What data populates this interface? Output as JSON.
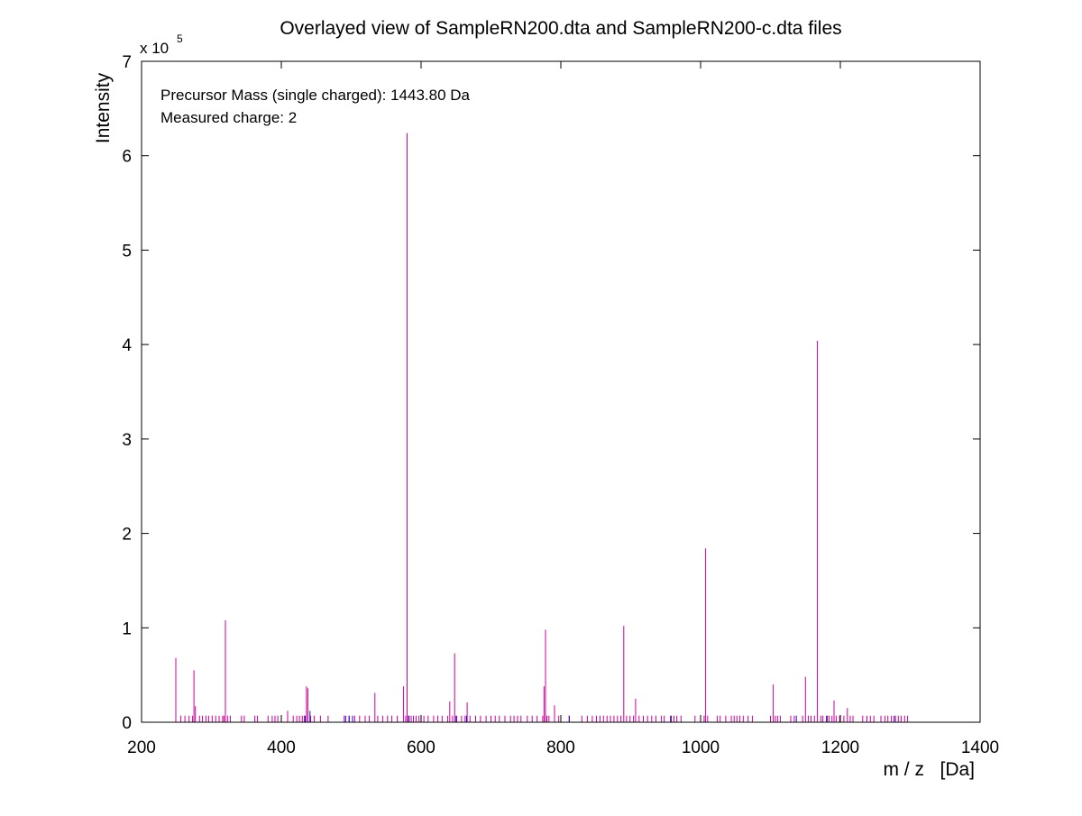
{
  "chart_data": {
    "type": "stem",
    "title": "Overlayed view of SampleRN200.dta and SampleRN200-c.dta files",
    "xlabel": "m / z   [Da]",
    "ylabel": "Intensity",
    "y_multiplier_base": "x 10",
    "y_multiplier_exponent": "5",
    "xlim": [
      200,
      1400
    ],
    "ylim": [
      0,
      7
    ],
    "x_ticks": [
      200,
      400,
      600,
      800,
      1000,
      1200,
      1400
    ],
    "y_ticks": [
      0,
      1,
      2,
      3,
      4,
      5,
      6,
      7
    ],
    "grid": false,
    "annotations": [
      "Precursor Mass (single charged): 1443.80 Da",
      "Measured charge: 2"
    ],
    "series": [
      {
        "color": "#cc0099",
        "x": [
          249,
          256,
          262,
          268,
          273,
          275,
          277,
          283,
          287,
          292,
          296,
          301,
          306,
          311,
          316,
          318,
          320,
          323,
          327,
          343,
          347,
          362,
          366,
          381,
          387,
          391,
          395,
          409,
          417,
          422,
          426,
          430,
          433,
          436,
          438,
          442,
          447,
          456,
          467,
          490,
          497,
          505,
          512,
          520,
          526,
          534,
          538,
          545,
          552,
          558,
          566,
          575,
          578,
          580,
          583,
          586,
          589,
          593,
          597,
          600,
          604,
          610,
          618,
          624,
          630,
          638,
          641,
          645,
          648,
          651,
          658,
          663,
          666,
          670,
          678,
          685,
          693,
          700,
          706,
          712,
          720,
          728,
          733,
          738,
          743,
          752,
          759,
          766,
          774,
          776,
          778,
          780,
          783,
          791,
          797,
          812,
          830,
          838,
          845,
          851,
          856,
          861,
          866,
          871,
          876,
          881,
          886,
          890,
          894,
          899,
          904,
          907,
          912,
          918,
          924,
          930,
          936,
          944,
          948,
          958,
          962,
          966,
          972,
          992,
          1000,
          1005,
          1007,
          1010,
          1024,
          1028,
          1036,
          1044,
          1048,
          1052,
          1056,
          1061,
          1068,
          1074,
          1100,
          1104,
          1107,
          1110,
          1114,
          1129,
          1134,
          1146,
          1150,
          1154,
          1158,
          1163,
          1167,
          1172,
          1175,
          1180,
          1184,
          1188,
          1191,
          1194,
          1199,
          1205,
          1210,
          1214,
          1218,
          1232,
          1238,
          1243,
          1248,
          1258,
          1264,
          1268,
          1273,
          1279,
          1283,
          1287,
          1292,
          1296
        ],
        "values": [
          0.68,
          0.07,
          0.07,
          0.07,
          0.07,
          0.55,
          0.17,
          0.07,
          0.07,
          0.07,
          0.07,
          0.07,
          0.07,
          0.07,
          0.07,
          0.07,
          1.08,
          0.07,
          0.07,
          0.07,
          0.07,
          0.07,
          0.07,
          0.07,
          0.07,
          0.07,
          0.07,
          0.12,
          0.07,
          0.07,
          0.07,
          0.07,
          0.07,
          0.38,
          0.36,
          0.07,
          0.07,
          0.07,
          0.07,
          0.07,
          0.07,
          0.07,
          0.07,
          0.07,
          0.07,
          0.31,
          0.07,
          0.07,
          0.07,
          0.07,
          0.07,
          0.38,
          0.07,
          6.24,
          0.07,
          0.07,
          0.07,
          0.07,
          0.07,
          0.07,
          0.07,
          0.07,
          0.07,
          0.07,
          0.07,
          0.07,
          0.22,
          0.07,
          0.73,
          0.07,
          0.07,
          0.07,
          0.21,
          0.07,
          0.07,
          0.07,
          0.07,
          0.07,
          0.07,
          0.07,
          0.07,
          0.07,
          0.07,
          0.07,
          0.07,
          0.07,
          0.07,
          0.07,
          0.07,
          0.38,
          0.98,
          0.07,
          0.07,
          0.18,
          0.07,
          0.07,
          0.07,
          0.07,
          0.07,
          0.07,
          0.07,
          0.07,
          0.07,
          0.07,
          0.07,
          0.07,
          0.07,
          1.02,
          0.07,
          0.07,
          0.07,
          0.25,
          0.07,
          0.07,
          0.07,
          0.07,
          0.07,
          0.07,
          0.07,
          0.07,
          0.07,
          0.07,
          0.07,
          0.07,
          0.07,
          0.07,
          1.84,
          0.07,
          0.07,
          0.07,
          0.07,
          0.07,
          0.07,
          0.07,
          0.07,
          0.07,
          0.07,
          0.07,
          0.07,
          0.4,
          0.07,
          0.07,
          0.07,
          0.07,
          0.07,
          0.07,
          0.48,
          0.07,
          0.07,
          0.07,
          4.04,
          0.07,
          0.07,
          0.07,
          0.07,
          0.07,
          0.23,
          0.07,
          0.07,
          0.07,
          0.15,
          0.07,
          0.07,
          0.07,
          0.07,
          0.07,
          0.07,
          0.07,
          0.07,
          0.07,
          0.07,
          0.07,
          0.07,
          0.07,
          0.07,
          0.07
        ]
      },
      {
        "color": "#2200cc",
        "x": [
          434,
          441,
          492,
          497,
          502,
          582,
          650,
          665,
          812,
          957,
          1137,
          1181,
          1277
        ],
        "values": [
          0.07,
          0.12,
          0.07,
          0.07,
          0.07,
          0.07,
          0.07,
          0.07,
          0.07,
          0.07,
          0.07,
          0.07,
          0.07
        ]
      }
    ]
  }
}
